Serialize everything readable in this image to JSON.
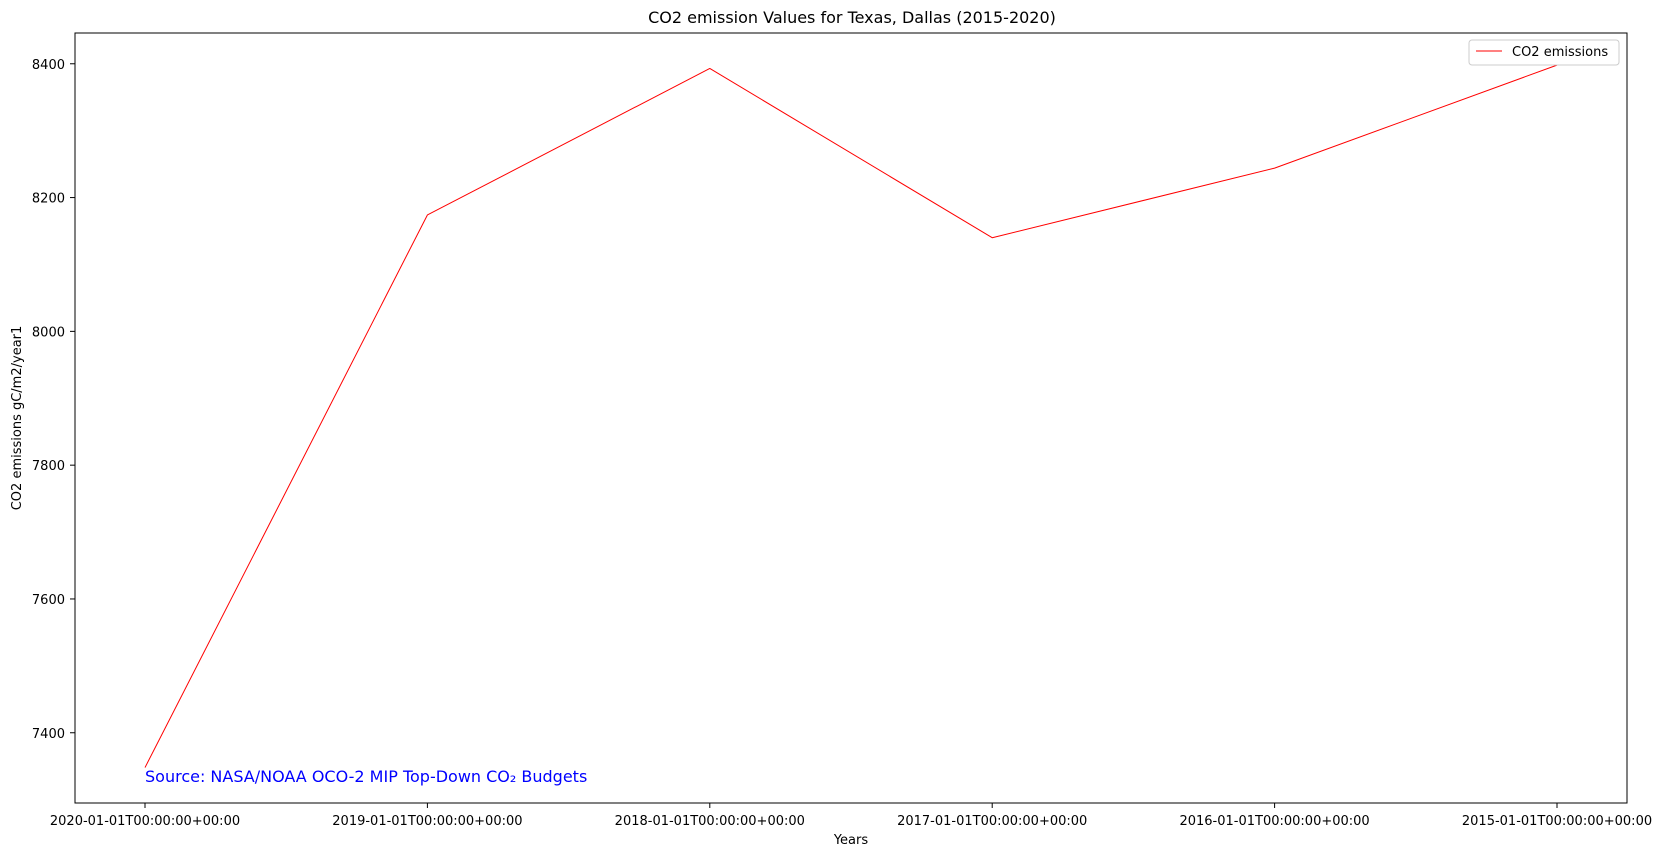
{
  "chart_data": {
    "type": "line",
    "title": "CO2 emission Values for Texas, Dallas (2015-2020)",
    "xlabel": "Years",
    "ylabel": "CO2 emissions gC/m2/year1",
    "categories": [
      "2020-01-01T00:00:00+00:00",
      "2019-01-01T00:00:00+00:00",
      "2018-01-01T00:00:00+00:00",
      "2017-01-01T00:00:00+00:00",
      "2016-01-01T00:00:00+00:00",
      "2015-01-01T00:00:00+00:00"
    ],
    "series": [
      {
        "name": "CO2 emissions",
        "color": "#ff0000",
        "values": [
          7348,
          8174,
          8393,
          8140,
          8244,
          8398
        ]
      }
    ],
    "ylim": [
      7295,
      8446
    ],
    "yticks": [
      7400,
      7600,
      7800,
      8000,
      8200,
      8400
    ],
    "grid": false,
    "legend_position": "top-right",
    "annotation": {
      "text": "Source: NASA/NOAA OCO-2 MIP Top-Down CO₂ Budgets",
      "color": "#0000ff"
    }
  }
}
